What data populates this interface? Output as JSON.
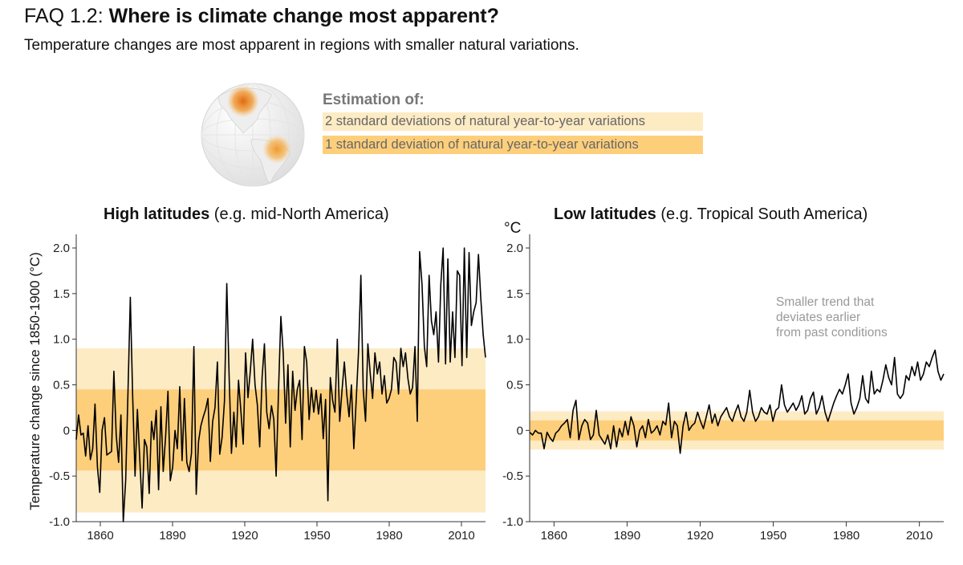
{
  "header": {
    "prefix": "FAQ 1.2: ",
    "title": "Where is climate change most apparent?",
    "subtitle": "Temperature changes are most apparent in regions with smaller natural variations."
  },
  "legend": {
    "title": "Estimation of:",
    "two_sd": "2 standard deviations of natural year-to-year variations",
    "one_sd": "1 standard deviation of natural year-to-year variations"
  },
  "colors": {
    "outer_band": "#fdebc4",
    "inner_band": "#fdcf7b",
    "line": "#000000",
    "hotspot": "#f0a030"
  },
  "chart_data": [
    {
      "type": "line",
      "title_bold": "High latitudes",
      "title_rest": " (e.g. mid-North America)",
      "ylabel": "Temperature change since 1850-1900 (°C)",
      "xlim": [
        1850,
        2020
      ],
      "ylim": [
        -1.0,
        2.15
      ],
      "xticks": [
        1860,
        1890,
        1920,
        1950,
        1980,
        2010
      ],
      "yticks": [
        -1.0,
        -0.5,
        0,
        0.5,
        1.0,
        1.5,
        2.0
      ],
      "ytick_labels": [
        "-1.0",
        "-0.5",
        "0",
        "0.5",
        "1.0",
        "1.5",
        "2.0"
      ],
      "bands": {
        "two_sd": [
          -0.9,
          0.9
        ],
        "one_sd": [
          -0.44,
          0.45
        ]
      },
      "x_start": 1850,
      "values": [
        -0.1,
        0.17,
        -0.05,
        -0.03,
        -0.28,
        0.05,
        -0.32,
        -0.2,
        0.29,
        -0.4,
        -0.68,
        0.0,
        0.14,
        -0.27,
        -0.25,
        -0.23,
        0.65,
        -0.05,
        -0.35,
        0.17,
        -1.0,
        -0.55,
        0.43,
        1.46,
        0.38,
        -0.5,
        0.23,
        -0.3,
        -0.85,
        -0.1,
        -0.18,
        -0.69,
        0.1,
        -0.1,
        0.22,
        -0.65,
        0.26,
        -0.45,
        -0.06,
        0.43,
        -0.55,
        -0.4,
        0.0,
        -0.2,
        0.48,
        -0.33,
        0.35,
        -0.35,
        -0.45,
        -0.25,
        0.92,
        -0.7,
        -0.12,
        0.05,
        0.15,
        0.23,
        0.35,
        -0.34,
        0.1,
        0.25,
        0.75,
        -0.26,
        -0.08,
        0.32,
        1.61,
        0.6,
        -0.25,
        0.2,
        -0.18,
        0.55,
        0.21,
        -0.15,
        0.85,
        0.36,
        0.65,
        1.0,
        0.5,
        0.28,
        -0.18,
        0.58,
        0.95,
        0.2,
        0.02,
        0.27,
        0.12,
        -0.5,
        0.45,
        1.25,
        0.85,
        0.08,
        0.72,
        -0.18,
        0.65,
        0.22,
        0.45,
        0.55,
        -0.1,
        0.92,
        0.75,
        0.12,
        0.47,
        0.2,
        0.44,
        0.18,
        0.4,
        -0.09,
        0.34,
        -0.77,
        0.58,
        0.33,
        0.2,
        1.0,
        0.1,
        0.44,
        0.75,
        0.4,
        0.15,
        0.5,
        -0.2,
        0.32,
        0.85,
        1.7,
        0.45,
        0.1,
        0.95,
        0.62,
        0.35,
        0.85,
        0.62,
        0.75,
        0.4,
        0.6,
        0.3,
        0.35,
        0.45,
        0.8,
        0.75,
        0.4,
        0.9,
        0.7,
        0.85,
        0.57,
        0.4,
        0.47,
        0.92,
        0.1,
        1.96,
        1.6,
        0.92,
        0.7,
        1.7,
        1.2,
        1.05,
        1.3,
        0.75,
        1.6,
        2.0,
        0.73,
        1.88,
        0.75,
        1.3,
        0.8,
        1.75,
        1.7,
        0.71,
        2.0,
        0.8,
        1.95,
        1.15,
        1.3,
        1.4,
        1.93,
        1.45,
        1.05,
        0.8
      ]
    },
    {
      "type": "line",
      "title_bold": "Low latitudes",
      "title_rest": " (e.g. Tropical South America)",
      "unit": "°C",
      "note": [
        "Smaller trend that",
        "deviates earlier",
        "from past conditions"
      ],
      "xlim": [
        1850,
        2020
      ],
      "ylim": [
        -1.0,
        2.15
      ],
      "xticks": [
        1860,
        1890,
        1920,
        1950,
        1980,
        2010
      ],
      "yticks": [
        -1.0,
        -0.5,
        0,
        0.5,
        1.0,
        1.5,
        2.0
      ],
      "ytick_labels": [
        "-1.0",
        "-0.5",
        "0",
        "0.5",
        "1.0",
        "1.5",
        "2.0"
      ],
      "bands": {
        "two_sd": [
          -0.21,
          0.21
        ],
        "one_sd": [
          -0.11,
          0.11
        ]
      },
      "x_start": 1850,
      "values": [
        -0.02,
        -0.05,
        0.0,
        -0.03,
        -0.03,
        -0.2,
        -0.02,
        -0.08,
        -0.12,
        -0.03,
        0.0,
        0.05,
        0.08,
        0.12,
        -0.08,
        0.22,
        0.33,
        -0.1,
        0.05,
        0.12,
        0.08,
        -0.1,
        -0.05,
        0.22,
        -0.05,
        -0.1,
        -0.15,
        -0.05,
        -0.2,
        0.05,
        -0.18,
        0.02,
        -0.07,
        0.1,
        -0.05,
        0.15,
        0.05,
        -0.18,
        0.0,
        0.05,
        -0.08,
        0.12,
        -0.03,
        0.0,
        0.05,
        -0.05,
        0.1,
        0.06,
        0.3,
        -0.08,
        0.1,
        0.05,
        -0.25,
        0.05,
        0.2,
        0.0,
        0.05,
        0.08,
        0.2,
        0.1,
        0.02,
        0.15,
        0.28,
        0.08,
        0.18,
        0.05,
        0.15,
        0.2,
        0.25,
        0.15,
        0.1,
        0.2,
        0.28,
        0.15,
        0.1,
        0.2,
        0.44,
        0.2,
        0.1,
        0.15,
        0.25,
        0.2,
        0.18,
        0.28,
        0.1,
        0.22,
        0.25,
        0.5,
        0.28,
        0.2,
        0.25,
        0.3,
        0.22,
        0.28,
        0.38,
        0.18,
        0.22,
        0.35,
        0.42,
        0.18,
        0.25,
        0.38,
        0.2,
        0.1,
        0.2,
        0.3,
        0.38,
        0.45,
        0.4,
        0.5,
        0.62,
        0.3,
        0.18,
        0.25,
        0.35,
        0.6,
        0.35,
        0.3,
        0.65,
        0.4,
        0.45,
        0.42,
        0.55,
        0.72,
        0.58,
        0.5,
        0.8,
        0.4,
        0.35,
        0.4,
        0.6,
        0.55,
        0.7,
        0.6,
        0.75,
        0.55,
        0.62,
        0.75,
        0.7,
        0.8,
        0.88,
        0.65,
        0.55,
        0.62
      ]
    }
  ],
  "axis_years_note": "values are annual anomalies starting at x_start"
}
